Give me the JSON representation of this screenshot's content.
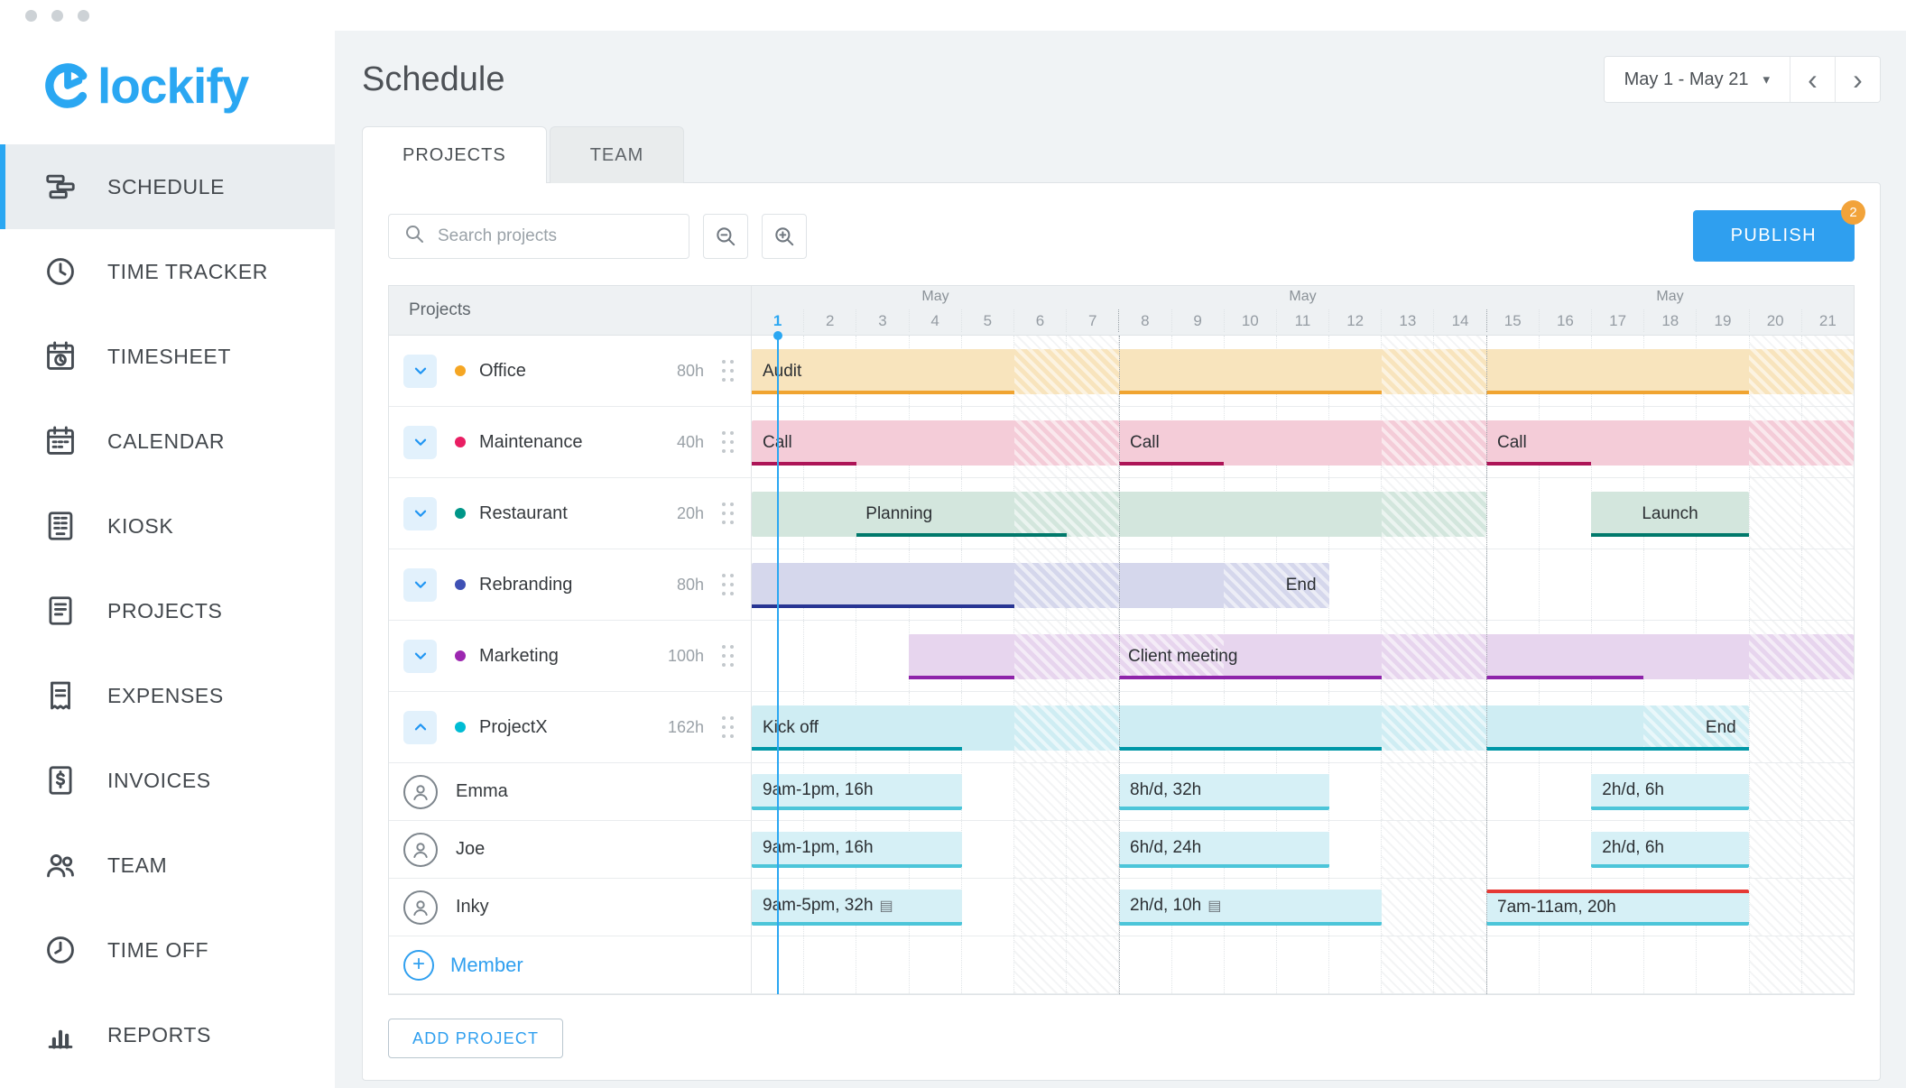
{
  "header": {
    "title": "Schedule",
    "date_range": "May 1 - May 21"
  },
  "sidebar": {
    "logo_text": "lockify",
    "items": [
      {
        "id": "schedule",
        "label": "SCHEDULE",
        "icon": "schedule-icon",
        "active": true
      },
      {
        "id": "time-tracker",
        "label": "TIME TRACKER",
        "icon": "time-tracker-icon",
        "active": false
      },
      {
        "id": "timesheet",
        "label": "TIMESHEET",
        "icon": "timesheet-icon",
        "active": false
      },
      {
        "id": "calendar",
        "label": "CALENDAR",
        "icon": "calendar-icon",
        "active": false
      },
      {
        "id": "kiosk",
        "label": "KIOSK",
        "icon": "kiosk-icon",
        "active": false
      },
      {
        "id": "projects",
        "label": "PROJECTS",
        "icon": "projects-icon",
        "active": false
      },
      {
        "id": "expenses",
        "label": "EXPENSES",
        "icon": "expenses-icon",
        "active": false
      },
      {
        "id": "invoices",
        "label": "INVOICES",
        "icon": "invoices-icon",
        "active": false
      },
      {
        "id": "team",
        "label": "TEAM",
        "icon": "team-icon",
        "active": false
      },
      {
        "id": "time-off",
        "label": "TIME OFF",
        "icon": "time-off-icon",
        "active": false
      },
      {
        "id": "reports",
        "label": "REPORTS",
        "icon": "reports-icon",
        "active": false
      }
    ]
  },
  "tabs": [
    {
      "label": "PROJECTS",
      "active": true
    },
    {
      "label": "TEAM",
      "active": false
    }
  ],
  "toolbar": {
    "search_placeholder": "Search projects",
    "publish_label": "PUBLISH",
    "publish_badge": "2"
  },
  "icons": {
    "search": "magnifier",
    "zoom_out": "magnifier-minus",
    "zoom_in": "magnifier-plus",
    "caret_down": "▾",
    "prev": "‹",
    "next": "›",
    "note": "▤",
    "add": "+",
    "drag_handle": "six-dots",
    "avatar": "person-circle",
    "expand": "chevron-down",
    "collapse": "chevron-up"
  },
  "colors": {
    "accent": "#2aa7f2",
    "publish_blue": "#2f9fef",
    "badge_orange": "#f2a33a",
    "today_marker": "#2aa7f2",
    "overallocated_red": "#e53935"
  },
  "gantt": {
    "projects_header": "Projects",
    "total_days": 21,
    "today_day": 1,
    "weekends": [
      [
        6,
        7
      ],
      [
        13,
        14
      ],
      [
        20,
        21
      ]
    ],
    "weeks": [
      {
        "month": "May",
        "days": [
          "1",
          "2",
          "3",
          "4",
          "5",
          "6",
          "7"
        ]
      },
      {
        "month": "May",
        "days": [
          "8",
          "9",
          "10",
          "11",
          "12",
          "13",
          "14"
        ]
      },
      {
        "month": "May",
        "days": [
          "15",
          "16",
          "17",
          "18",
          "19",
          "20",
          "21"
        ]
      }
    ],
    "rows": [
      {
        "type": "project",
        "name": "Office",
        "hours": "80h",
        "dot": "#f5a623",
        "fill": "#f8e4bd",
        "line": "#f0a431",
        "expanded": false,
        "bars": [
          {
            "start": 1,
            "end": 21,
            "label": "Audit",
            "underline": [
              [
                1,
                5
              ],
              [
                8,
                12
              ],
              [
                15,
                19
              ]
            ],
            "hatch": [
              [
                6,
                7
              ],
              [
                13,
                14
              ],
              [
                20,
                21
              ]
            ]
          }
        ]
      },
      {
        "type": "project",
        "name": "Maintenance",
        "hours": "40h",
        "dot": "#e91e63",
        "fill": "#f4ccd8",
        "line": "#ad1457",
        "expanded": false,
        "bars": [
          {
            "start": 1,
            "end": 7,
            "label": "Call",
            "underline": [
              [
                1,
                2
              ]
            ],
            "hatch": [
              [
                6,
                7
              ]
            ]
          },
          {
            "start": 8,
            "end": 14,
            "label": "Call",
            "underline": [
              [
                8,
                9
              ]
            ],
            "hatch": [
              [
                13,
                14
              ]
            ]
          },
          {
            "start": 15,
            "end": 21,
            "label": "Call",
            "underline": [
              [
                15,
                16
              ]
            ],
            "hatch": [
              [
                20,
                21
              ]
            ]
          }
        ]
      },
      {
        "type": "project",
        "name": "Restaurant",
        "hours": "20h",
        "dot": "#009688",
        "fill": "#d3e6dd",
        "line": "#00796b",
        "expanded": false,
        "bars": [
          {
            "start": 1,
            "end": 14,
            "label": "Planning",
            "label_offset_days": 2,
            "underline": [
              [
                3,
                6
              ]
            ],
            "hatch": [
              [
                6,
                7
              ],
              [
                13,
                14
              ]
            ]
          },
          {
            "start": 17,
            "end": 19,
            "label": "Launch",
            "label_align": "center",
            "underline": [
              [
                17,
                19
              ]
            ],
            "hatch": []
          }
        ]
      },
      {
        "type": "project",
        "name": "Rebranding",
        "hours": "80h",
        "dot": "#3f51b5",
        "fill": "#d5d7ec",
        "line": "#283593",
        "expanded": false,
        "bars": [
          {
            "start": 1,
            "end": 11,
            "label": "",
            "label2": "End",
            "underline": [
              [
                1,
                5
              ]
            ],
            "hatch": [
              [
                6,
                7
              ],
              [
                10,
                11
              ]
            ]
          }
        ]
      },
      {
        "type": "project",
        "name": "Marketing",
        "hours": "100h",
        "dot": "#9c27b0",
        "fill": "#e7d5ee",
        "line": "#8e24aa",
        "expanded": false,
        "bars": [
          {
            "start": 4,
            "end": 21,
            "label": "Client meeting",
            "label_offset_days": 4,
            "underline": [
              [
                4,
                5
              ],
              [
                8,
                12
              ],
              [
                15,
                17
              ]
            ],
            "hatch": [
              [
                6,
                7
              ],
              [
                8,
                9
              ],
              [
                13,
                14
              ],
              [
                20,
                21
              ]
            ]
          }
        ]
      },
      {
        "type": "project",
        "name": "ProjectX",
        "hours": "162h",
        "dot": "#00bcd4",
        "fill": "#cfedf3",
        "line": "#0097a7",
        "expanded": true,
        "bars": [
          {
            "start": 1,
            "end": 19,
            "label": "Kick off",
            "label2": "End",
            "underline": [
              [
                1,
                4
              ],
              [
                8,
                12
              ],
              [
                15,
                19
              ]
            ],
            "hatch": [
              [
                6,
                7
              ],
              [
                13,
                14
              ],
              [
                18,
                19
              ]
            ]
          }
        ]
      },
      {
        "type": "member",
        "name": "Emma",
        "bars": [
          {
            "start": 1,
            "end": 4,
            "label": "9am-1pm, 16h"
          },
          {
            "start": 8,
            "end": 11,
            "label": "8h/d, 32h"
          },
          {
            "start": 17,
            "end": 19,
            "label": "2h/d, 6h"
          }
        ]
      },
      {
        "type": "member",
        "name": "Joe",
        "bars": [
          {
            "start": 1,
            "end": 4,
            "label": "9am-1pm, 16h"
          },
          {
            "start": 8,
            "end": 11,
            "label": "6h/d, 24h"
          },
          {
            "start": 17,
            "end": 19,
            "label": "2h/d, 6h"
          }
        ]
      },
      {
        "type": "member",
        "name": "Inky",
        "bars": [
          {
            "start": 1,
            "end": 4,
            "label": "9am-5pm, 32h",
            "note": true
          },
          {
            "start": 8,
            "end": 12,
            "label": "2h/d, 10h",
            "note": true
          },
          {
            "start": 15,
            "end": 19,
            "label": "7am-11am, 20h",
            "overallocated": true
          }
        ]
      },
      {
        "type": "add-member"
      }
    ],
    "add_member_label": "Member",
    "add_project_label": "ADD PROJECT"
  }
}
